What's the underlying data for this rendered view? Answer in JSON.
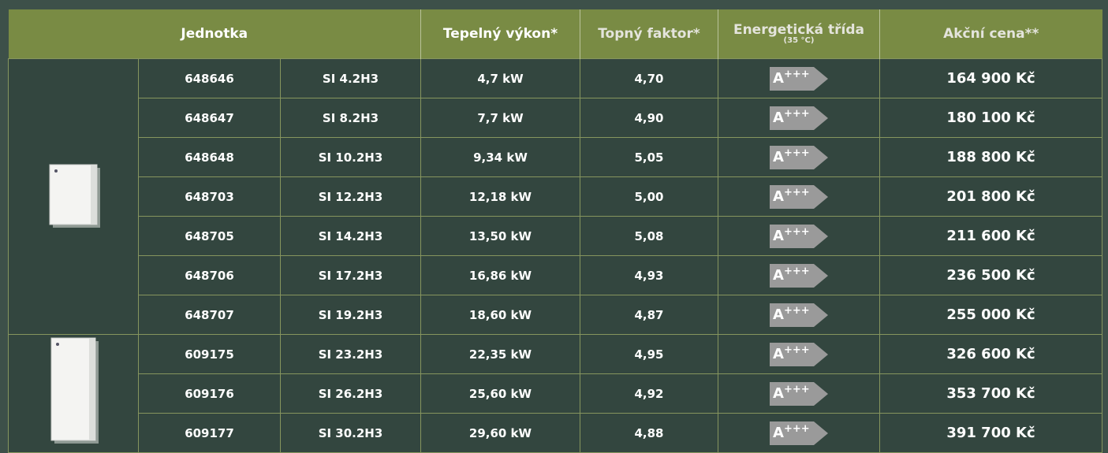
{
  "header": {
    "unit": "Jednotka",
    "power": "Tepelný výkon*",
    "cop": "Topný faktor*",
    "energy_class": "Energetická třída",
    "energy_class_note": "(35 °C)",
    "price": "Akční cena**"
  },
  "rows": [
    {
      "code": "648646",
      "model": "SI 4.2H3",
      "power": "4,7 kW",
      "cop": "4,70",
      "class": "A",
      "class_plus": "+++",
      "price": "164 900 Kč"
    },
    {
      "code": "648647",
      "model": "SI 8.2H3",
      "power": "7,7 kW",
      "cop": "4,90",
      "class": "A",
      "class_plus": "+++",
      "price": "180 100 Kč"
    },
    {
      "code": "648648",
      "model": "SI 10.2H3",
      "power": "9,34 kW",
      "cop": "5,05",
      "class": "A",
      "class_plus": "+++",
      "price": "188 800 Kč"
    },
    {
      "code": "648703",
      "model": "SI 12.2H3",
      "power": "12,18 kW",
      "cop": "5,00",
      "class": "A",
      "class_plus": "+++",
      "price": "201 800 Kč"
    },
    {
      "code": "648705",
      "model": "SI 14.2H3",
      "power": "13,50 kW",
      "cop": "5,08",
      "class": "A",
      "class_plus": "+++",
      "price": "211 600 Kč"
    },
    {
      "code": "648706",
      "model": "SI 17.2H3",
      "power": "16,86 kW",
      "cop": "4,93",
      "class": "A",
      "class_plus": "+++",
      "price": "236 500 Kč"
    },
    {
      "code": "648707",
      "model": "SI 19.2H3",
      "power": "18,60 kW",
      "cop": "4,87",
      "class": "A",
      "class_plus": "+++",
      "price": "255 000 Kč"
    },
    {
      "code": "609175",
      "model": "SI 23.2H3",
      "power": "22,35 kW",
      "cop": "4,95",
      "class": "A",
      "class_plus": "+++",
      "price": "326 600 Kč"
    },
    {
      "code": "609176",
      "model": "SI 26.2H3",
      "power": "25,60 kW",
      "cop": "4,92",
      "class": "A",
      "class_plus": "+++",
      "price": "353 700 Kč"
    },
    {
      "code": "609177",
      "model": "SI 30.2H3",
      "power": "29,60 kW",
      "cop": "4,88",
      "class": "A",
      "class_plus": "+++",
      "price": "391 700 Kč"
    }
  ]
}
